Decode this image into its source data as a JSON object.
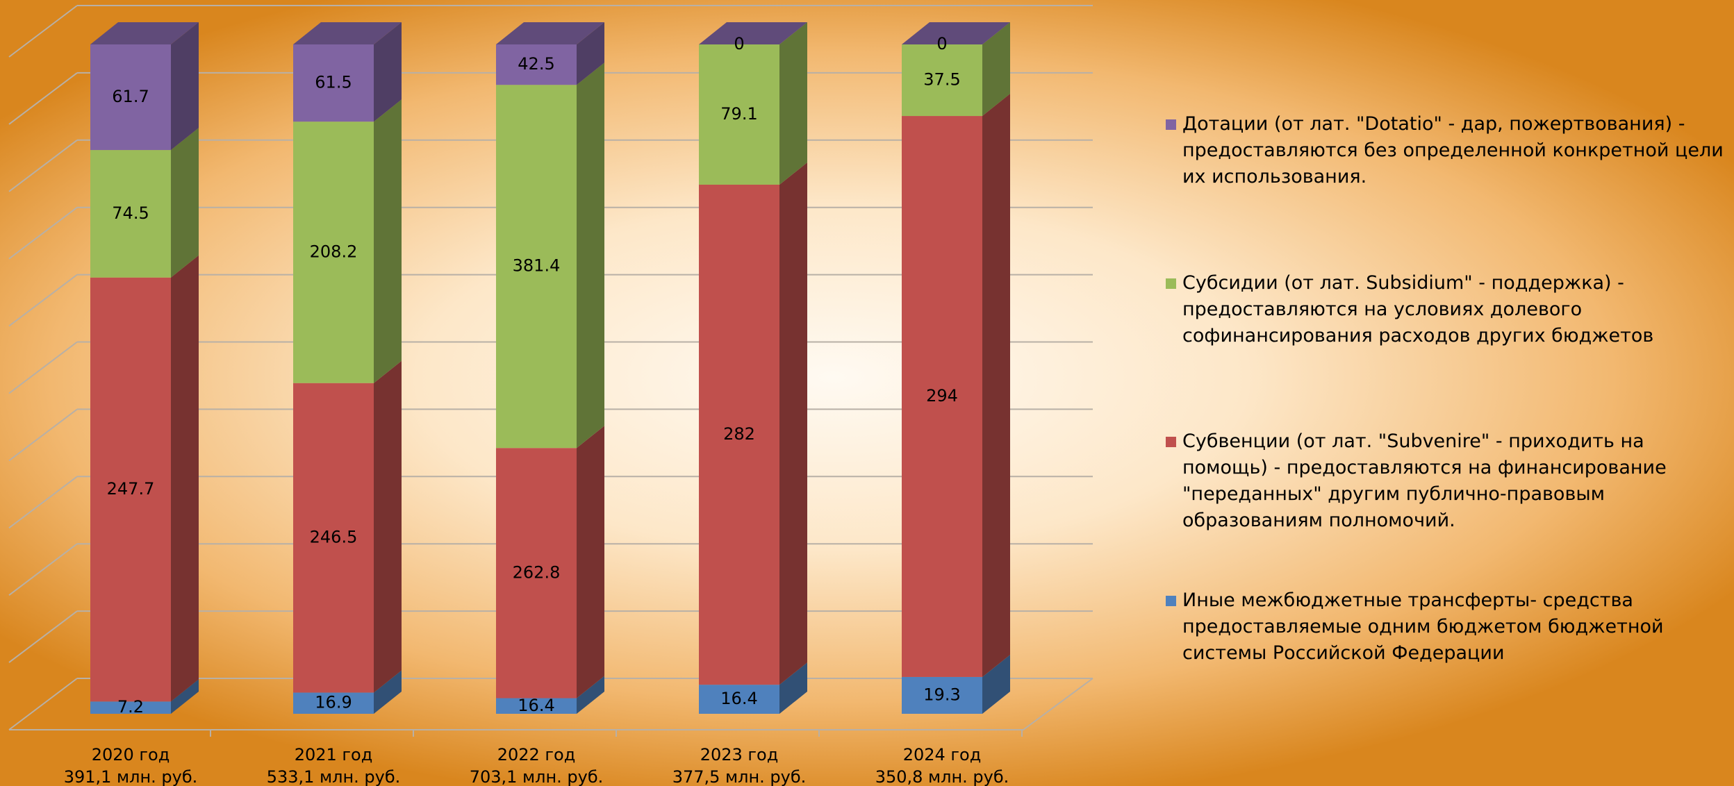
{
  "chart_data": {
    "type": "bar3d_stacked_percent",
    "categories": [
      "2020 год",
      "2021 год",
      "2022 год",
      "2023 год",
      "2024 год"
    ],
    "category_totals": [
      "391,1 млн. руб.",
      "533,1 млн. руб.",
      "703,1 млн. руб.",
      "377,5 млн. руб.",
      "350,8 млн. руб."
    ],
    "ylim": [
      0,
      100
    ],
    "yticks": [
      0,
      10,
      20,
      30,
      40,
      50,
      60,
      70,
      80,
      90,
      100
    ],
    "grid": true,
    "legend": "right",
    "series": [
      {
        "name": "Иные межбюджетные трансферты- средства предоставляемые одним бюджетом бюджетной системы Российской Федерации",
        "color": "#4f81bd",
        "values": [
          7.2,
          16.9,
          16.4,
          16.4,
          19.3
        ]
      },
      {
        "name": "Субвенции (от лат. \"Subvenire\" - приходить на помощь) - предоставляются на финансирование \"переданных\" другим публично-правовым образованиям полномочий.",
        "color": "#c0504d",
        "values": [
          247.7,
          246.5,
          262.8,
          282,
          294
        ]
      },
      {
        "name": "Субсидии (от лат. Subsidium\" - поддержка) - предоставляются на условиях долевого софинансирования расходов других бюджетов",
        "color": "#9bbb59",
        "values": [
          74.5,
          208.2,
          381.4,
          79.1,
          37.5
        ]
      },
      {
        "name": "Дотации (от лат. \"Dotatio\" - дар, пожертвования) - предоставляются без определенной конкретной цели их использования.",
        "color": "#8064a2",
        "values": [
          61.7,
          61.5,
          42.5,
          0,
          0
        ]
      }
    ]
  }
}
